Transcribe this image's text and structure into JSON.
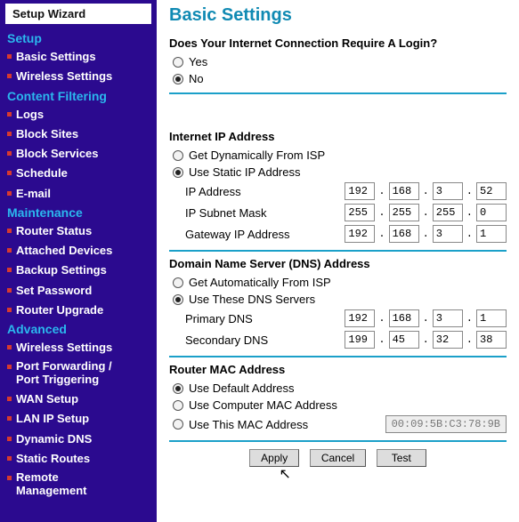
{
  "sidebar": {
    "setup_wizard": "Setup Wizard",
    "groups": [
      {
        "heading": "Setup",
        "items": [
          "Basic Settings",
          "Wireless Settings"
        ]
      },
      {
        "heading": "Content Filtering",
        "items": [
          "Logs",
          "Block Sites",
          "Block Services",
          "Schedule",
          "E-mail"
        ]
      },
      {
        "heading": "Maintenance",
        "items": [
          "Router Status",
          "Attached Devices",
          "Backup Settings",
          "Set Password",
          "Router Upgrade"
        ]
      },
      {
        "heading": "Advanced",
        "items": [
          "Wireless Settings",
          "Port Forwarding /\nPort Triggering",
          "WAN Setup",
          "LAN IP Setup",
          "Dynamic DNS",
          "Static Routes",
          "Remote\nManagement"
        ]
      }
    ]
  },
  "page": {
    "title": "Basic Settings",
    "login_q": "Does Your Internet Connection Require A Login?",
    "yes": "Yes",
    "no": "No",
    "ip_heading": "Internet IP Address",
    "ip_dyn": "Get Dynamically From ISP",
    "ip_static": "Use Static IP Address",
    "ip_addr_label": "IP Address",
    "ip_mask_label": "IP Subnet Mask",
    "ip_gw_label": "Gateway IP Address",
    "ip_addr": [
      "192",
      "168",
      "3",
      "52"
    ],
    "ip_mask": [
      "255",
      "255",
      "255",
      "0"
    ],
    "ip_gw": [
      "192",
      "168",
      "3",
      "1"
    ],
    "dns_heading": "Domain Name Server (DNS) Address",
    "dns_auto": "Get Automatically From ISP",
    "dns_use": "Use These DNS Servers",
    "dns_pri_label": "Primary DNS",
    "dns_sec_label": "Secondary DNS",
    "dns_pri": [
      "192",
      "168",
      "3",
      "1"
    ],
    "dns_sec": [
      "199",
      "45",
      "32",
      "38"
    ],
    "mac_heading": "Router MAC Address",
    "mac_default": "Use Default Address",
    "mac_computer": "Use Computer MAC Address",
    "mac_this": "Use This MAC Address",
    "mac_value": "00:09:5B:C3:78:9B",
    "btn_apply": "Apply",
    "btn_cancel": "Cancel",
    "btn_test": "Test"
  },
  "colors": {
    "sidebar_bg": "#2b0a8f",
    "heading_color": "#2bb7ee",
    "bullet_color": "#d63a2f",
    "title_color": "#108ab3",
    "rule_color": "#1ba0c9"
  }
}
